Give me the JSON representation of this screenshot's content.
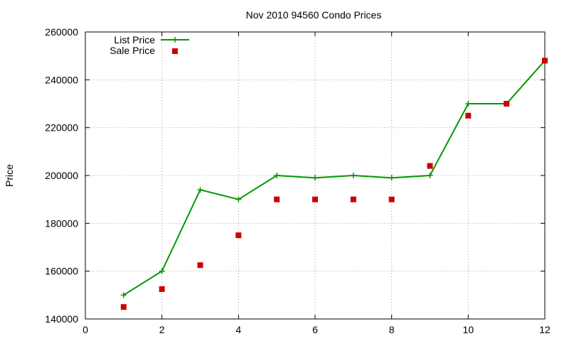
{
  "chart_data": {
    "type": "line",
    "title": "Nov 2010 94560 Condo Prices",
    "xlabel": "",
    "ylabel": "Price",
    "xlim": [
      0,
      12
    ],
    "ylim": [
      140000,
      260000
    ],
    "x_ticks": [
      0,
      2,
      4,
      6,
      8,
      10,
      12
    ],
    "y_ticks": [
      140000,
      160000,
      180000,
      200000,
      220000,
      240000,
      260000
    ],
    "grid": true,
    "legend_position": "top-left",
    "series": [
      {
        "name": "List Price",
        "style": "line-with-plus-markers",
        "color": "#009900",
        "x": [
          1,
          2,
          3,
          4,
          5,
          6,
          7,
          8,
          9,
          10,
          11,
          12
        ],
        "values": [
          150000,
          160000,
          194000,
          190000,
          200000,
          199000,
          200000,
          199000,
          200000,
          230000,
          230000,
          248000
        ]
      },
      {
        "name": "Sale Price",
        "style": "square-markers",
        "color": "#cc0000",
        "x": [
          1,
          2,
          3,
          4,
          5,
          6,
          7,
          8,
          9,
          10,
          11,
          12
        ],
        "values": [
          145000,
          152500,
          162500,
          175000,
          190000,
          190000,
          190000,
          190000,
          204000,
          225000,
          230000,
          248000
        ]
      }
    ]
  }
}
